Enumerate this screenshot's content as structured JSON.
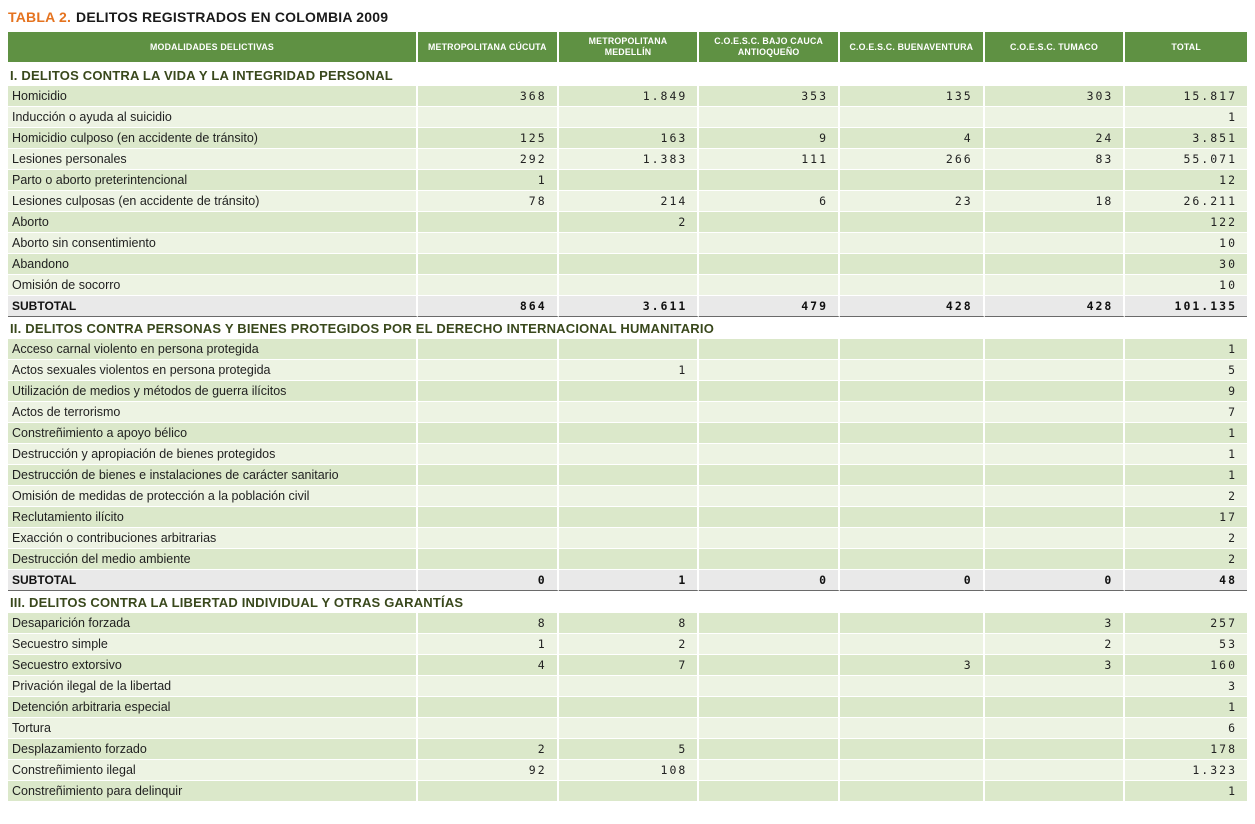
{
  "title": {
    "prefix": "TABLA 2.",
    "text": "DELITOS REGISTRADOS EN COLOMBIA 2009"
  },
  "colors": {
    "title_prefix": "#e5731f",
    "header_bg": "#5f9143",
    "row_dark": "#dbe8ca",
    "row_light": "#edf3e3",
    "subtotal_bg": "#e9e9e9",
    "section_text": "#39481c"
  },
  "table": {
    "columns": [
      "MODALIDADES DELICTIVAS",
      "METROPOLITANA CÚCUTA",
      "METROPOLITANA MEDELLÍN",
      "C.O.E.S.C. BAJO CAUCA ANTIOQUEÑO",
      "C.O.E.S.C. BUENAVENTURA",
      "C.O.E.S.C. TUMACO",
      "TOTAL"
    ],
    "sections": [
      {
        "header": "I. DELITOS CONTRA LA VIDA Y LA INTEGRIDAD PERSONAL",
        "rows": [
          {
            "label": "Homicidio",
            "values": [
              "368",
              "1.849",
              "353",
              "135",
              "303",
              "15.817"
            ]
          },
          {
            "label": "Inducción o ayuda al suicidio",
            "values": [
              "",
              "",
              "",
              "",
              "",
              "1"
            ]
          },
          {
            "label": "Homicidio culposo (en accidente de tránsito)",
            "values": [
              "125",
              "163",
              "9",
              "4",
              "24",
              "3.851"
            ]
          },
          {
            "label": "Lesiones personales",
            "values": [
              "292",
              "1.383",
              "111",
              "266",
              "83",
              "55.071"
            ]
          },
          {
            "label": "Parto o aborto preterintencional",
            "values": [
              "1",
              "",
              "",
              "",
              "",
              "12"
            ]
          },
          {
            "label": "Lesiones culposas (en accidente de tránsito)",
            "values": [
              "78",
              "214",
              "6",
              "23",
              "18",
              "26.211"
            ]
          },
          {
            "label": "Aborto",
            "values": [
              "",
              "2",
              "",
              "",
              "",
              "122"
            ]
          },
          {
            "label": "Aborto sin consentimiento",
            "values": [
              "",
              "",
              "",
              "",
              "",
              "10"
            ]
          },
          {
            "label": "Abandono",
            "values": [
              "",
              "",
              "",
              "",
              "",
              "30"
            ]
          },
          {
            "label": "Omisión de socorro",
            "values": [
              "",
              "",
              "",
              "",
              "",
              "10"
            ]
          }
        ],
        "subtotal": {
          "label": "SUBTOTAL",
          "values": [
            "864",
            "3.611",
            "479",
            "428",
            "428",
            "101.135"
          ]
        }
      },
      {
        "header": "II. DELITOS CONTRA PERSONAS Y BIENES PROTEGIDOS POR EL DERECHO INTERNACIONAL HUMANITARIO",
        "rows": [
          {
            "label": "Acceso carnal violento en persona protegida",
            "values": [
              "",
              "",
              "",
              "",
              "",
              "1"
            ]
          },
          {
            "label": "Actos sexuales violentos en persona protegida",
            "values": [
              "",
              "1",
              "",
              "",
              "",
              "5"
            ]
          },
          {
            "label": "Utilización de medios y métodos de guerra ilícitos",
            "values": [
              "",
              "",
              "",
              "",
              "",
              "9"
            ]
          },
          {
            "label": "Actos de terrorismo",
            "values": [
              "",
              "",
              "",
              "",
              "",
              "7"
            ]
          },
          {
            "label": "Constreñimiento a apoyo bélico",
            "values": [
              "",
              "",
              "",
              "",
              "",
              "1"
            ]
          },
          {
            "label": "Destrucción y apropiación de bienes protegidos",
            "values": [
              "",
              "",
              "",
              "",
              "",
              "1"
            ]
          },
          {
            "label": "Destrucción de bienes e instalaciones de carácter sanitario",
            "values": [
              "",
              "",
              "",
              "",
              "",
              "1"
            ]
          },
          {
            "label": "Omisión de medidas de protección a la población civil",
            "values": [
              "",
              "",
              "",
              "",
              "",
              "2"
            ]
          },
          {
            "label": "Reclutamiento ilícito",
            "values": [
              "",
              "",
              "",
              "",
              "",
              "17"
            ]
          },
          {
            "label": "Exacción o contribuciones arbitrarias",
            "values": [
              "",
              "",
              "",
              "",
              "",
              "2"
            ]
          },
          {
            "label": "Destrucción del medio ambiente",
            "values": [
              "",
              "",
              "",
              "",
              "",
              "2"
            ]
          }
        ],
        "subtotal": {
          "label": "SUBTOTAL",
          "values": [
            "0",
            "1",
            "0",
            "0",
            "0",
            "48"
          ]
        }
      },
      {
        "header": "III. DELITOS CONTRA LA LIBERTAD INDIVIDUAL Y OTRAS GARANTÍAS",
        "rows": [
          {
            "label": "Desaparición forzada",
            "values": [
              "8",
              "8",
              "",
              "",
              "3",
              "257"
            ]
          },
          {
            "label": "Secuestro simple",
            "values": [
              "1",
              "2",
              "",
              "",
              "2",
              "53"
            ]
          },
          {
            "label": "Secuestro extorsivo",
            "values": [
              "4",
              "7",
              "",
              "3",
              "3",
              "160"
            ]
          },
          {
            "label": "Privación ilegal de la libertad",
            "values": [
              "",
              "",
              "",
              "",
              "",
              "3"
            ]
          },
          {
            "label": "Detención arbitraria especial",
            "values": [
              "",
              "",
              "",
              "",
              "",
              "1"
            ]
          },
          {
            "label": "Tortura",
            "values": [
              "",
              "",
              "",
              "",
              "",
              "6"
            ]
          },
          {
            "label": "Desplazamiento forzado",
            "values": [
              "2",
              "5",
              "",
              "",
              "",
              "178"
            ]
          },
          {
            "label": "Constreñimiento ilegal",
            "values": [
              "92",
              "108",
              "",
              "",
              "",
              "1.323"
            ]
          },
          {
            "label": "Constreñimiento para delinquir",
            "values": [
              "",
              "",
              "",
              "",
              "",
              "1"
            ]
          }
        ],
        "subtotal": null
      }
    ]
  }
}
